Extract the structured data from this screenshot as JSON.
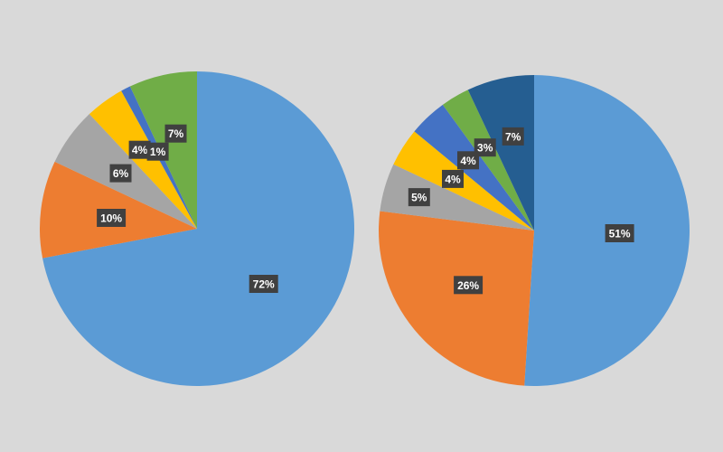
{
  "chart_data": [
    {
      "type": "pie",
      "title": "",
      "start_angle_deg": 0,
      "direction": "clockwise",
      "slices": [
        {
          "label": "72%",
          "value": 72,
          "color": "#5b9bd5"
        },
        {
          "label": "10%",
          "value": 10,
          "color": "#ed7d31"
        },
        {
          "label": "6%",
          "value": 6,
          "color": "#a5a5a5"
        },
        {
          "label": "4%",
          "value": 4,
          "color": "#ffc000"
        },
        {
          "label": "1%",
          "value": 1,
          "color": "#4472c4"
        },
        {
          "label": "7%",
          "value": 7,
          "color": "#70ad47"
        }
      ]
    },
    {
      "type": "pie",
      "title": "",
      "start_angle_deg": 0,
      "direction": "clockwise",
      "slices": [
        {
          "label": "51%",
          "value": 51,
          "color": "#5b9bd5"
        },
        {
          "label": "26%",
          "value": 26,
          "color": "#ed7d31"
        },
        {
          "label": "5%",
          "value": 5,
          "color": "#a5a5a5"
        },
        {
          "label": "4%",
          "value": 4,
          "color": "#ffc000"
        },
        {
          "label": "4%",
          "value": 4,
          "color": "#4472c4"
        },
        {
          "label": "3%",
          "value": 3,
          "color": "#70ad47"
        },
        {
          "label": "7%",
          "value": 7,
          "color": "#255e91"
        }
      ]
    }
  ],
  "style": {
    "background": "#d9d9d9",
    "label_box_color": "#404040",
    "label_text_color": "#ffffff"
  }
}
